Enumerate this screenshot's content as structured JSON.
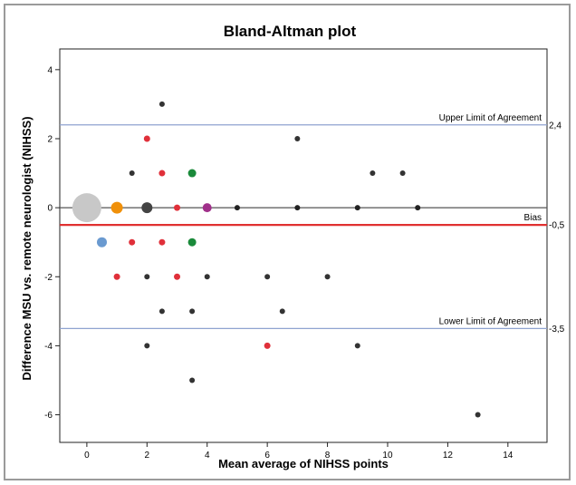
{
  "chart_data": {
    "type": "scatter",
    "title": "Bland-Altman plot",
    "xlabel": "Mean average of NIHSS points",
    "ylabel": "Difference MSU vs. remote neurologist (NIHSS)",
    "xlim": [
      -0.9,
      15.3
    ],
    "ylim": [
      -6.8,
      4.6
    ],
    "xticks": [
      0,
      2,
      4,
      6,
      8,
      10,
      12,
      14
    ],
    "yticks": [
      -6,
      -4,
      -2,
      0,
      2,
      4
    ],
    "grid": false,
    "reference_lines": [
      {
        "name": "zero",
        "value": 0,
        "color": "#555555"
      },
      {
        "name": "upper",
        "label": "Upper Limit of Agreement",
        "value_label": "2,4",
        "value": 2.4,
        "color": "#8fa3d0"
      },
      {
        "name": "bias",
        "label": "Bias",
        "value_label": "-0,5",
        "value": -0.5,
        "color": "#e03030"
      },
      {
        "name": "lower",
        "label": "Lower Limit of Agreement",
        "value_label": "-3,5",
        "value": -3.5,
        "color": "#8fa3d0"
      }
    ],
    "points": [
      {
        "x": 0,
        "y": 0,
        "size": 16,
        "color": "#c8c8c8"
      },
      {
        "x": 1,
        "y": 0,
        "size": 6.5,
        "color": "#f0900a"
      },
      {
        "x": 2,
        "y": 0,
        "size": 6,
        "color": "#444444"
      },
      {
        "x": 3,
        "y": 0,
        "size": 3.5,
        "color": "#e0303a"
      },
      {
        "x": 4,
        "y": 0,
        "size": 5,
        "color": "#a0308a"
      },
      {
        "x": 5,
        "y": 0,
        "size": 3,
        "color": "#222222"
      },
      {
        "x": 7,
        "y": 0,
        "size": 3,
        "color": "#222222"
      },
      {
        "x": 9,
        "y": 0,
        "size": 3,
        "color": "#222222"
      },
      {
        "x": 11,
        "y": 0,
        "size": 3,
        "color": "#222222"
      },
      {
        "x": 2.5,
        "y": 3,
        "size": 3,
        "color": "#333333"
      },
      {
        "x": 2,
        "y": 2,
        "size": 3.5,
        "color": "#e0303a"
      },
      {
        "x": 7,
        "y": 2,
        "size": 3,
        "color": "#333333"
      },
      {
        "x": 1.5,
        "y": 1,
        "size": 3,
        "color": "#333333"
      },
      {
        "x": 2.5,
        "y": 1,
        "size": 3.5,
        "color": "#e0303a"
      },
      {
        "x": 3.5,
        "y": 1,
        "size": 4.5,
        "color": "#1a8a3a"
      },
      {
        "x": 9.5,
        "y": 1,
        "size": 3,
        "color": "#333333"
      },
      {
        "x": 10.5,
        "y": 1,
        "size": 3,
        "color": "#333333"
      },
      {
        "x": 0.5,
        "y": -1,
        "size": 5.5,
        "color": "#6a9ad0"
      },
      {
        "x": 1.5,
        "y": -1,
        "size": 3.5,
        "color": "#e0303a"
      },
      {
        "x": 2.5,
        "y": -1,
        "size": 3.5,
        "color": "#e0303a"
      },
      {
        "x": 3.5,
        "y": -1,
        "size": 4.5,
        "color": "#1a8a3a"
      },
      {
        "x": 1,
        "y": -2,
        "size": 3.5,
        "color": "#e0303a"
      },
      {
        "x": 2,
        "y": -2,
        "size": 3,
        "color": "#333333"
      },
      {
        "x": 3,
        "y": -2,
        "size": 3.5,
        "color": "#e0303a"
      },
      {
        "x": 4,
        "y": -2,
        "size": 3,
        "color": "#333333"
      },
      {
        "x": 6,
        "y": -2,
        "size": 3,
        "color": "#333333"
      },
      {
        "x": 8,
        "y": -2,
        "size": 3,
        "color": "#333333"
      },
      {
        "x": 2.5,
        "y": -3,
        "size": 3,
        "color": "#333333"
      },
      {
        "x": 3.5,
        "y": -3,
        "size": 3,
        "color": "#333333"
      },
      {
        "x": 6.5,
        "y": -3,
        "size": 3,
        "color": "#333333"
      },
      {
        "x": 2,
        "y": -4,
        "size": 3,
        "color": "#333333"
      },
      {
        "x": 6,
        "y": -4,
        "size": 3.5,
        "color": "#e0303a"
      },
      {
        "x": 9,
        "y": -4,
        "size": 3,
        "color": "#333333"
      },
      {
        "x": 3.5,
        "y": -5,
        "size": 3,
        "color": "#333333"
      },
      {
        "x": 13,
        "y": -6,
        "size": 3,
        "color": "#333333"
      }
    ]
  }
}
